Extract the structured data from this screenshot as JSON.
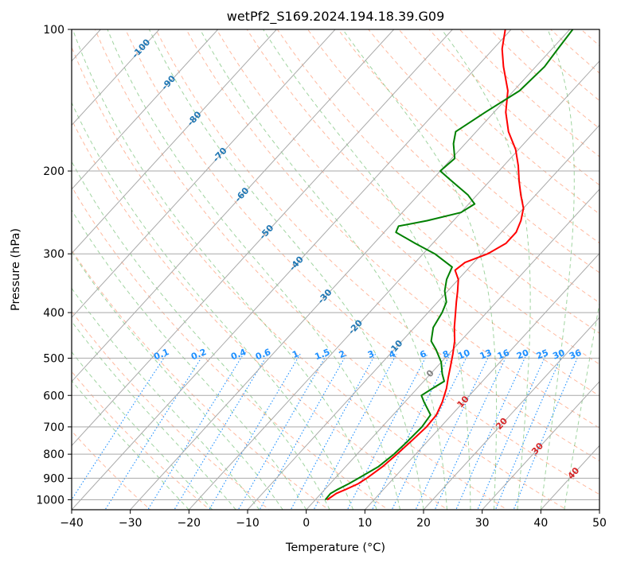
{
  "chart_data": {
    "type": "line",
    "title": "wetPf2_S169.2024.194.18.39.G09",
    "xlabel": "Temperature (°C)",
    "ylabel": "Pressure (hPa)",
    "xlim": [
      -40,
      50
    ],
    "ylim": [
      1050,
      100
    ],
    "y_scale": "log",
    "skew": "skew-T log-p",
    "grid": true,
    "x_ticks": [
      -40,
      -30,
      -20,
      -10,
      0,
      10,
      20,
      30,
      40,
      50
    ],
    "y_ticks": [
      100,
      200,
      300,
      400,
      500,
      600,
      700,
      800,
      900,
      1000
    ],
    "series": [
      {
        "color": "#ff0000",
        "style": "solid",
        "points": [
          [
            1000,
            2.0
          ],
          [
            970,
            2.6
          ],
          [
            950,
            3.6
          ],
          [
            925,
            4.8
          ],
          [
            900,
            5.4
          ],
          [
            850,
            6.3
          ],
          [
            800,
            6.8
          ],
          [
            750,
            7.2
          ],
          [
            700,
            7.6
          ],
          [
            660,
            7.4
          ],
          [
            620,
            6.4
          ],
          [
            580,
            5.0
          ],
          [
            550,
            3.6
          ],
          [
            520,
            2.2
          ],
          [
            490,
            0.7
          ],
          [
            460,
            -1.0
          ],
          [
            430,
            -3.2
          ],
          [
            400,
            -5.3
          ],
          [
            380,
            -6.8
          ],
          [
            360,
            -8.3
          ],
          [
            340,
            -10.0
          ],
          [
            325,
            -12.0
          ],
          [
            313,
            -11.5
          ],
          [
            300,
            -9.0
          ],
          [
            285,
            -7.5
          ],
          [
            270,
            -7.5
          ],
          [
            255,
            -8.5
          ],
          [
            240,
            -10.0
          ],
          [
            225,
            -12.5
          ],
          [
            210,
            -15.0
          ],
          [
            195,
            -17.5
          ],
          [
            180,
            -20.5
          ],
          [
            165,
            -24.5
          ],
          [
            150,
            -28.0
          ],
          [
            135,
            -31.0
          ],
          [
            120,
            -35.5
          ],
          [
            110,
            -38.5
          ],
          [
            100,
            -41.0
          ]
        ]
      },
      {
        "color": "#008000",
        "style": "solid",
        "points": [
          [
            1000,
            1.7
          ],
          [
            970,
            1.6
          ],
          [
            950,
            2.2
          ],
          [
            925,
            3.2
          ],
          [
            900,
            4.0
          ],
          [
            850,
            5.6
          ],
          [
            800,
            6.3
          ],
          [
            750,
            6.6
          ],
          [
            700,
            6.8
          ],
          [
            660,
            6.4
          ],
          [
            620,
            3.3
          ],
          [
            600,
            1.8
          ],
          [
            580,
            2.6
          ],
          [
            560,
            3.5
          ],
          [
            540,
            2.0
          ],
          [
            510,
            0.0
          ],
          [
            480,
            -2.8
          ],
          [
            460,
            -5.0
          ],
          [
            430,
            -6.8
          ],
          [
            400,
            -7.6
          ],
          [
            380,
            -8.5
          ],
          [
            360,
            -10.5
          ],
          [
            340,
            -12.0
          ],
          [
            320,
            -13.0
          ],
          [
            300,
            -18.0
          ],
          [
            285,
            -23.0
          ],
          [
            270,
            -28.0
          ],
          [
            262,
            -28.5
          ],
          [
            255,
            -24.5
          ],
          [
            245,
            -20.0
          ],
          [
            235,
            -19.0
          ],
          [
            225,
            -21.5
          ],
          [
            210,
            -26.5
          ],
          [
            200,
            -30.0
          ],
          [
            188,
            -29.5
          ],
          [
            175,
            -32.0
          ],
          [
            165,
            -33.5
          ],
          [
            150,
            -31.5
          ],
          [
            135,
            -29.0
          ],
          [
            120,
            -28.5
          ],
          [
            110,
            -29.0
          ],
          [
            100,
            -29.5
          ]
        ]
      }
    ],
    "isotherm_labels": [
      {
        "t": -100,
        "p": 110
      },
      {
        "t": -90,
        "p": 130
      },
      {
        "t": -80,
        "p": 155
      },
      {
        "t": -70,
        "p": 185
      },
      {
        "t": -60,
        "p": 225
      },
      {
        "t": -50,
        "p": 270
      },
      {
        "t": -40,
        "p": 315
      },
      {
        "t": -30,
        "p": 370
      },
      {
        "t": -20,
        "p": 430
      },
      {
        "t": -10,
        "p": 475
      },
      {
        "t": 0,
        "p": 540
      },
      {
        "t": 10,
        "p": 620
      },
      {
        "t": 20,
        "p": 690
      },
      {
        "t": 30,
        "p": 780
      },
      {
        "t": 40,
        "p": 880
      }
    ],
    "mixing_ratio_labels": [
      "0.1",
      "0.2",
      "0.4",
      "0.6",
      "1",
      "1.5",
      "2",
      "3",
      "4",
      "6",
      "8",
      "10",
      "13",
      "16",
      "20",
      "25",
      "30",
      "36"
    ],
    "colors": {
      "isotherm_label_cold": "#1f77b4",
      "isotherm_label_zero": "#808080",
      "isotherm_label_warm": "#d62728",
      "mixing_ratio": "#1e90ff",
      "dry_adiabat": "#ff7f50",
      "moist_adiabat": "#2ca02c",
      "grid": "#a9a9a9"
    }
  }
}
